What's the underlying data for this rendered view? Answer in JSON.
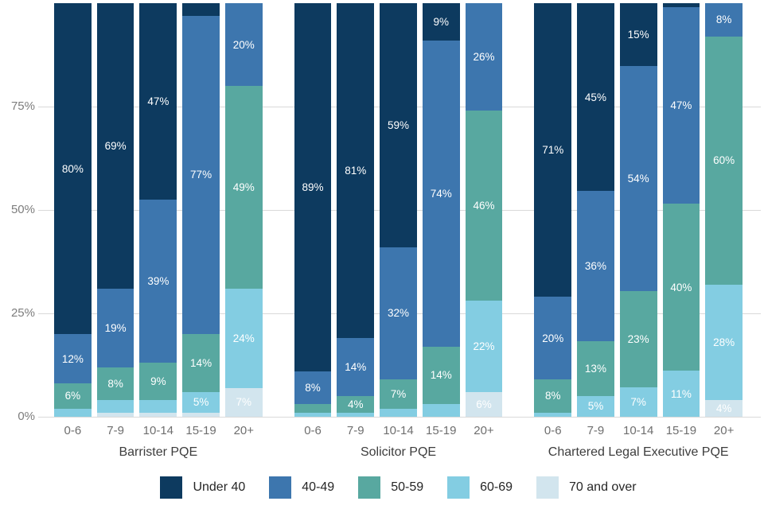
{
  "chart_data": {
    "type": "bar",
    "subtype": "stacked-percentage-column",
    "title": "",
    "xlabel": "",
    "ylabel": "",
    "ylim": [
      0,
      100
    ],
    "grid": true,
    "legend_position": "bottom",
    "y_axis": {
      "ticks": [
        {
          "label": "0%",
          "value": 0
        },
        {
          "label": "25%",
          "value": 25
        },
        {
          "label": "50%",
          "value": 50
        },
        {
          "label": "75%",
          "value": 75
        }
      ]
    },
    "series_legend": [
      {
        "name": "Under 40",
        "color": "#0d3a5f"
      },
      {
        "name": "40-49",
        "color": "#3d76ae"
      },
      {
        "name": "50-59",
        "color": "#58a8a0"
      },
      {
        "name": "60-69",
        "color": "#83cde2"
      },
      {
        "name": "70 and over",
        "color": "#d2e5ee"
      }
    ],
    "groups": [
      {
        "title": "Barrister PQE",
        "categories": [
          "0-6",
          "7-9",
          "10-14",
          "15-19",
          "20+"
        ],
        "bars": [
          {
            "category": "0-6",
            "segments": [
              {
                "series": "Under 40",
                "value": 80,
                "label": "80%"
              },
              {
                "series": "40-49",
                "value": 12,
                "label": "12%"
              },
              {
                "series": "50-59",
                "value": 6,
                "label": "6%"
              },
              {
                "series": "60-69",
                "value": 2,
                "label": ""
              }
            ]
          },
          {
            "category": "7-9",
            "segments": [
              {
                "series": "Under 40",
                "value": 69,
                "label": "69%"
              },
              {
                "series": "40-49",
                "value": 19,
                "label": "19%"
              },
              {
                "series": "50-59",
                "value": 8,
                "label": "8%"
              },
              {
                "series": "60-69",
                "value": 3,
                "label": ""
              },
              {
                "series": "70 and over",
                "value": 1,
                "label": ""
              }
            ]
          },
          {
            "category": "10-14",
            "segments": [
              {
                "series": "Under 40",
                "value": 47,
                "label": "47%"
              },
              {
                "series": "40-49",
                "value": 39,
                "label": "39%"
              },
              {
                "series": "50-59",
                "value": 9,
                "label": "9%"
              },
              {
                "series": "60-69",
                "value": 3,
                "label": ""
              },
              {
                "series": "70 and over",
                "value": 1,
                "label": ""
              }
            ]
          },
          {
            "category": "15-19",
            "segments": [
              {
                "series": "Under 40",
                "value": 3,
                "label": ""
              },
              {
                "series": "40-49",
                "value": 77,
                "label": "77%"
              },
              {
                "series": "50-59",
                "value": 14,
                "label": "14%"
              },
              {
                "series": "60-69",
                "value": 5,
                "label": "5%"
              },
              {
                "series": "70 and over",
                "value": 1,
                "label": ""
              }
            ]
          },
          {
            "category": "20+",
            "segments": [
              {
                "series": "40-49",
                "value": 20,
                "label": "20%"
              },
              {
                "series": "50-59",
                "value": 49,
                "label": "49%"
              },
              {
                "series": "60-69",
                "value": 24,
                "label": "24%"
              },
              {
                "series": "70 and over",
                "value": 7,
                "label": "7%"
              }
            ]
          }
        ]
      },
      {
        "title": "Solicitor PQE",
        "categories": [
          "0-6",
          "7-9",
          "10-14",
          "15-19",
          "20+"
        ],
        "bars": [
          {
            "category": "0-6",
            "segments": [
              {
                "series": "Under 40",
                "value": 89,
                "label": "89%"
              },
              {
                "series": "40-49",
                "value": 8,
                "label": "8%"
              },
              {
                "series": "50-59",
                "value": 2,
                "label": ""
              },
              {
                "series": "60-69",
                "value": 1,
                "label": ""
              }
            ]
          },
          {
            "category": "7-9",
            "segments": [
              {
                "series": "Under 40",
                "value": 81,
                "label": "81%"
              },
              {
                "series": "40-49",
                "value": 14,
                "label": "14%"
              },
              {
                "series": "50-59",
                "value": 4,
                "label": "4%"
              },
              {
                "series": "60-69",
                "value": 1,
                "label": ""
              }
            ]
          },
          {
            "category": "10-14",
            "segments": [
              {
                "series": "Under 40",
                "value": 59,
                "label": "59%"
              },
              {
                "series": "40-49",
                "value": 32,
                "label": "32%"
              },
              {
                "series": "50-59",
                "value": 7,
                "label": "7%"
              },
              {
                "series": "60-69",
                "value": 2,
                "label": ""
              }
            ]
          },
          {
            "category": "15-19",
            "segments": [
              {
                "series": "Under 40",
                "value": 9,
                "label": "9%"
              },
              {
                "series": "40-49",
                "value": 74,
                "label": "74%"
              },
              {
                "series": "50-59",
                "value": 14,
                "label": "14%"
              },
              {
                "series": "60-69",
                "value": 3,
                "label": ""
              }
            ]
          },
          {
            "category": "20+",
            "segments": [
              {
                "series": "40-49",
                "value": 26,
                "label": "26%"
              },
              {
                "series": "50-59",
                "value": 46,
                "label": "46%"
              },
              {
                "series": "60-69",
                "value": 22,
                "label": "22%"
              },
              {
                "series": "70 and over",
                "value": 6,
                "label": "6%"
              }
            ]
          }
        ]
      },
      {
        "title": "Chartered Legal Executive PQE",
        "categories": [
          "0-6",
          "7-9",
          "10-14",
          "15-19",
          "20+"
        ],
        "bars": [
          {
            "category": "0-6",
            "segments": [
              {
                "series": "Under 40",
                "value": 71,
                "label": "71%"
              },
              {
                "series": "40-49",
                "value": 20,
                "label": "20%"
              },
              {
                "series": "50-59",
                "value": 8,
                "label": "8%"
              },
              {
                "series": "60-69",
                "value": 1,
                "label": ""
              }
            ]
          },
          {
            "category": "7-9",
            "segments": [
              {
                "series": "Under 40",
                "value": 45,
                "label": "45%"
              },
              {
                "series": "40-49",
                "value": 36,
                "label": "36%"
              },
              {
                "series": "50-59",
                "value": 13,
                "label": "13%"
              },
              {
                "series": "60-69",
                "value": 5,
                "label": "5%"
              }
            ]
          },
          {
            "category": "10-14",
            "segments": [
              {
                "series": "Under 40",
                "value": 15,
                "label": "15%"
              },
              {
                "series": "40-49",
                "value": 54,
                "label": "54%"
              },
              {
                "series": "50-59",
                "value": 23,
                "label": "23%"
              },
              {
                "series": "60-69",
                "value": 7,
                "label": "7%"
              }
            ]
          },
          {
            "category": "15-19",
            "segments": [
              {
                "series": "Under 40",
                "value": 1,
                "label": ""
              },
              {
                "series": "40-49",
                "value": 47,
                "label": "47%"
              },
              {
                "series": "50-59",
                "value": 40,
                "label": "40%"
              },
              {
                "series": "60-69",
                "value": 11,
                "label": "11%"
              }
            ]
          },
          {
            "category": "20+",
            "segments": [
              {
                "series": "40-49",
                "value": 8,
                "label": "8%"
              },
              {
                "series": "50-59",
                "value": 60,
                "label": "60%"
              },
              {
                "series": "60-69",
                "value": 28,
                "label": "28%"
              },
              {
                "series": "70 and over",
                "value": 4,
                "label": "4%"
              }
            ]
          }
        ]
      }
    ],
    "style": {
      "gridline_color": "#d9d9d9",
      "axis_label_color": "#7d7d7d",
      "category_label_color": "#6e6e6e",
      "group_title_color": "#3d3d3d",
      "bar_label_color": "#ffffff",
      "legend_text_color": "#262626",
      "background_color": "#ffffff"
    }
  }
}
